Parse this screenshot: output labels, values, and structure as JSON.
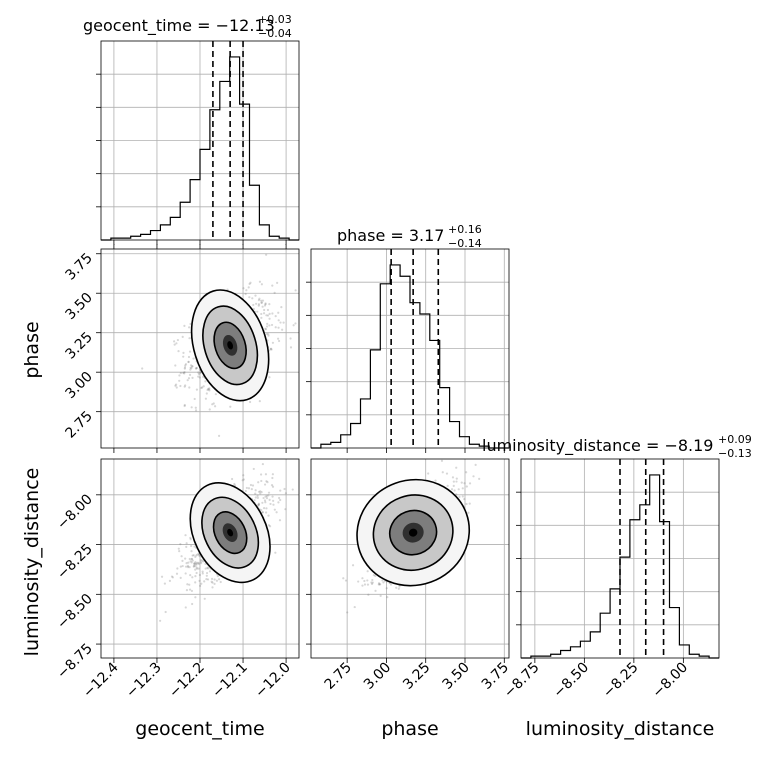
{
  "figure": {
    "type": "corner-plot",
    "parameters": [
      "geocent_time",
      "phase",
      "luminosity_distance"
    ]
  },
  "titles": [
    {
      "param": "geocent_time",
      "main": "geocent_time = −12.13",
      "plus": "+0.03",
      "minus": "−0.04"
    },
    {
      "param": "phase",
      "main": "phase = 3.17",
      "plus": "+0.16",
      "minus": "−0.14"
    },
    {
      "param": "luminosity_distance",
      "main": "luminosity_distance = −8.19",
      "plus": "+0.09",
      "minus": "−0.13"
    }
  ],
  "axis_labels": {
    "x": [
      "geocent_time",
      "phase",
      "luminosity_distance"
    ],
    "y": [
      "phase",
      "luminosity_distance"
    ]
  },
  "chart_data": {
    "type": "corner",
    "estimates": [
      {
        "param": "geocent_time",
        "median": -12.13,
        "plus": 0.03,
        "minus": 0.04
      },
      {
        "param": "phase",
        "median": 3.17,
        "plus": 0.16,
        "minus": 0.14
      },
      {
        "param": "luminosity_distance",
        "median": -8.19,
        "plus": 0.09,
        "minus": 0.13
      }
    ],
    "ranges": {
      "geocent_time": [
        -12.43,
        -11.97
      ],
      "phase": [
        2.52,
        3.78
      ],
      "luminosity_distance": [
        -8.82,
        -7.82
      ]
    },
    "ticks": {
      "geocent_time": {
        "values": [
          -12.4,
          -12.3,
          -12.2,
          -12.1,
          -12.0
        ],
        "labels": [
          "−12.4",
          "−12.3",
          "−12.2",
          "−12.1",
          "−12.0"
        ]
      },
      "phase": {
        "values": [
          2.75,
          3.0,
          3.25,
          3.5,
          3.75
        ],
        "labels": [
          "2.75",
          "3.00",
          "3.25",
          "3.50",
          "3.75"
        ]
      },
      "luminosity_distance": {
        "values": [
          -8.75,
          -8.5,
          -8.25,
          -8.0
        ],
        "labels": [
          "−8.75",
          "−8.50",
          "−8.25",
          "−8.00"
        ]
      }
    },
    "histograms": {
      "geocent_time": {
        "edges": [
          -12.43,
          -12.407,
          -12.384,
          -12.361,
          -12.338,
          -12.315,
          -12.292,
          -12.269,
          -12.246,
          -12.223,
          -12.2,
          -12.177,
          -12.154,
          -12.131,
          -12.108,
          -12.085,
          -12.062,
          -12.039,
          -12.016,
          -11.993,
          -11.97
        ],
        "counts": [
          0.0,
          0.01,
          0.01,
          0.02,
          0.03,
          0.05,
          0.08,
          0.12,
          0.2,
          0.32,
          0.48,
          0.69,
          0.84,
          0.97,
          0.72,
          0.29,
          0.08,
          0.02,
          0.01,
          0.0
        ]
      },
      "phase": {
        "edges": [
          2.52,
          2.583,
          2.646,
          2.709,
          2.772,
          2.835,
          2.898,
          2.961,
          3.024,
          3.087,
          3.15,
          3.213,
          3.276,
          3.339,
          3.402,
          3.465,
          3.528,
          3.591,
          3.654,
          3.717,
          3.78
        ],
        "counts": [
          0.0,
          0.02,
          0.03,
          0.07,
          0.13,
          0.26,
          0.52,
          0.87,
          0.97,
          0.91,
          0.77,
          0.71,
          0.57,
          0.32,
          0.14,
          0.06,
          0.02,
          0.01,
          0.0,
          0.0
        ]
      },
      "luminosity_distance": {
        "edges": [
          -8.82,
          -8.77,
          -8.72,
          -8.67,
          -8.62,
          -8.57,
          -8.52,
          -8.47,
          -8.42,
          -8.37,
          -8.32,
          -8.27,
          -8.22,
          -8.17,
          -8.12,
          -8.07,
          -8.02,
          -7.97,
          -7.92,
          -7.87,
          -7.82
        ],
        "counts": [
          0.0,
          0.01,
          0.01,
          0.02,
          0.04,
          0.06,
          0.09,
          0.14,
          0.24,
          0.37,
          0.54,
          0.74,
          0.82,
          0.98,
          0.73,
          0.27,
          0.07,
          0.02,
          0.01,
          0.0
        ]
      }
    }
  }
}
